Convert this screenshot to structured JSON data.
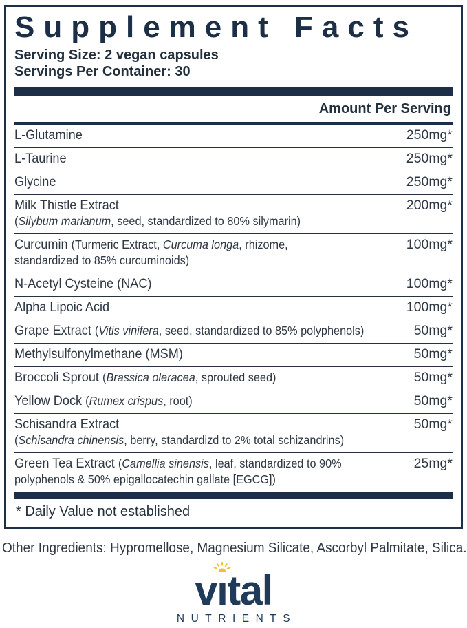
{
  "panel": {
    "title": "Supplement Facts",
    "serving_size": "Serving Size: 2 vegan capsules",
    "servings_per_container": "Servings Per Container: 30",
    "footnote": "* Daily Value not established"
  },
  "table": {
    "amount_header": "Amount Per Serving",
    "rows": [
      {
        "amount": "250mg*",
        "lines": [
          [
            {
              "t": "L-Glutamine"
            }
          ]
        ]
      },
      {
        "amount": "250mg*",
        "lines": [
          [
            {
              "t": "L-Taurine"
            }
          ]
        ]
      },
      {
        "amount": "250mg*",
        "lines": [
          [
            {
              "t": "Glycine"
            }
          ]
        ]
      },
      {
        "amount": "200mg*",
        "lines": [
          [
            {
              "t": "Milk Thistle Extract"
            }
          ],
          [
            {
              "t": "(",
              "sm": true
            },
            {
              "t": "Silybum marianum",
              "sm": true,
              "i": true
            },
            {
              "t": ", seed, standardized to 80% silymarin)",
              "sm": true
            }
          ]
        ]
      },
      {
        "amount": "100mg*",
        "lines": [
          [
            {
              "t": "Curcumin "
            },
            {
              "t": "(Turmeric Extract, ",
              "sm": true
            },
            {
              "t": "Curcuma longa",
              "sm": true,
              "i": true
            },
            {
              "t": ", rhizome,",
              "sm": true
            }
          ],
          [
            {
              "t": "standardized to 85% curcuminoids)",
              "sm": true
            }
          ]
        ]
      },
      {
        "amount": "100mg*",
        "lines": [
          [
            {
              "t": "N-Acetyl Cysteine (NAC)"
            }
          ]
        ]
      },
      {
        "amount": "100mg*",
        "lines": [
          [
            {
              "t": "Alpha Lipoic Acid"
            }
          ]
        ]
      },
      {
        "amount": "50mg*",
        "lines": [
          [
            {
              "t": "Grape Extract "
            },
            {
              "t": "(",
              "sm": true
            },
            {
              "t": "Vitis vinifera",
              "sm": true,
              "i": true
            },
            {
              "t": ", seed, standardized to 85% polyphenols)",
              "sm": true
            }
          ]
        ]
      },
      {
        "amount": "50mg*",
        "lines": [
          [
            {
              "t": "Methylsulfonylmethane (MSM)"
            }
          ]
        ]
      },
      {
        "amount": "50mg*",
        "lines": [
          [
            {
              "t": "Broccoli Sprout "
            },
            {
              "t": "(",
              "sm": true
            },
            {
              "t": "Brassica oleracea",
              "sm": true,
              "i": true
            },
            {
              "t": ", sprouted seed)",
              "sm": true
            }
          ]
        ]
      },
      {
        "amount": "50mg*",
        "lines": [
          [
            {
              "t": "Yellow Dock "
            },
            {
              "t": "(",
              "sm": true
            },
            {
              "t": "Rumex crispus",
              "sm": true,
              "i": true
            },
            {
              "t": ", root)",
              "sm": true
            }
          ]
        ]
      },
      {
        "amount": "50mg*",
        "lines": [
          [
            {
              "t": "Schisandra Extract"
            }
          ],
          [
            {
              "t": "(",
              "sm": true
            },
            {
              "t": "Schisandra chinensis",
              "sm": true,
              "i": true
            },
            {
              "t": ", berry, standardizd to 2% total schizandrins)",
              "sm": true
            }
          ]
        ]
      },
      {
        "amount": "25mg*",
        "lines": [
          [
            {
              "t": "Green Tea Extract "
            },
            {
              "t": "(",
              "sm": true
            },
            {
              "t": "Camellia sinensis",
              "sm": true,
              "i": true
            },
            {
              "t": ", leaf, standardized to 90%",
              "sm": true
            }
          ],
          [
            {
              "t": "polyphenols & 50% epigallocatechin gallate [EGCG])",
              "sm": true
            }
          ]
        ]
      }
    ]
  },
  "other_ingredients": "Other Ingredients: Hypromellose, Magnesium Silicate, Ascorbyl Palmitate, Silica.",
  "logo": {
    "brand": "vital",
    "brand_pre": "v",
    "brand_i": "ı",
    "brand_post": "tal",
    "sub": "NUTRIENTS",
    "sun_icon": "sun-icon"
  },
  "colors": {
    "navy": "#1c2f47",
    "body_text": "#2e3844",
    "logo_navy": "#203a5a",
    "sun_gold": "#f0c12f"
  }
}
